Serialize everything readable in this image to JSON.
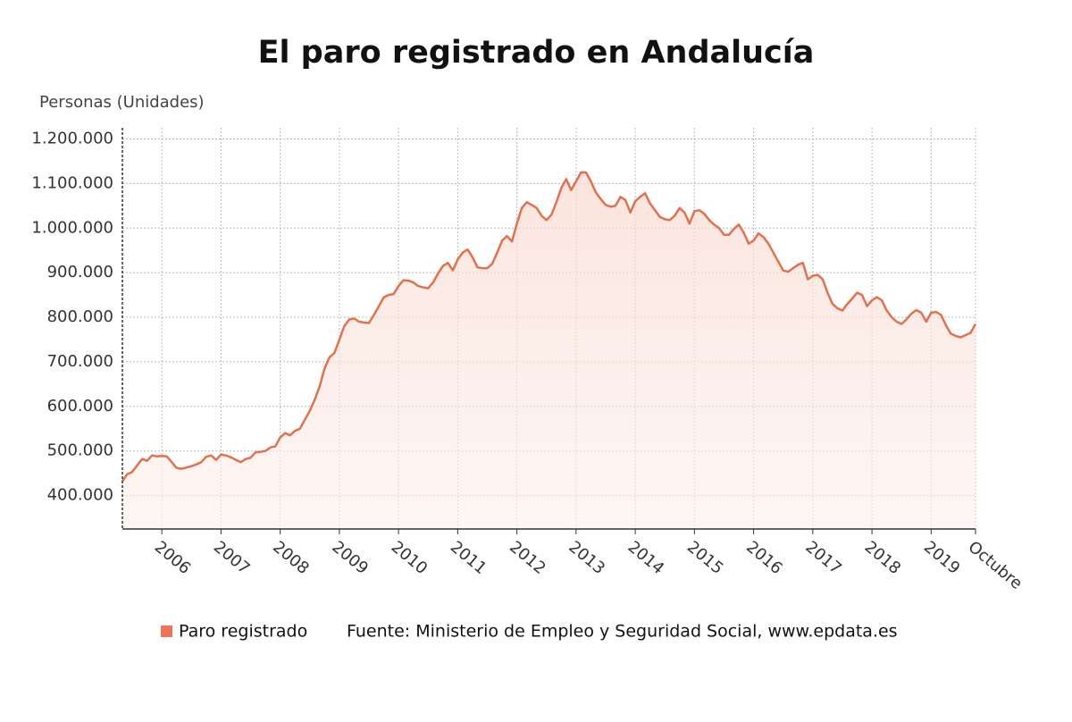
{
  "chart_data": {
    "type": "line",
    "title": "El paro registrado en Andalucía",
    "y_axis_label": "Personas (Unidades)",
    "source": "Fuente: Ministerio de Empleo y Seguridad Social, www.epdata.es",
    "categories": [
      null,
      null,
      null,
      null,
      null,
      null,
      null,
      null,
      "2006",
      null,
      null,
      null,
      null,
      null,
      null,
      null,
      null,
      null,
      null,
      null,
      "2007",
      null,
      null,
      null,
      null,
      null,
      null,
      null,
      null,
      null,
      null,
      null,
      "2008",
      null,
      null,
      null,
      null,
      null,
      null,
      null,
      null,
      null,
      null,
      null,
      "2009",
      null,
      null,
      null,
      null,
      null,
      null,
      null,
      null,
      null,
      null,
      null,
      "2010",
      null,
      null,
      null,
      null,
      null,
      null,
      null,
      null,
      null,
      null,
      null,
      "2011",
      null,
      null,
      null,
      null,
      null,
      null,
      null,
      null,
      null,
      null,
      null,
      "2012",
      null,
      null,
      null,
      null,
      null,
      null,
      null,
      null,
      null,
      null,
      null,
      "2013",
      null,
      null,
      null,
      null,
      null,
      null,
      null,
      null,
      null,
      null,
      null,
      "2014",
      null,
      null,
      null,
      null,
      null,
      null,
      null,
      null,
      null,
      null,
      null,
      "2015",
      null,
      null,
      null,
      null,
      null,
      null,
      null,
      null,
      null,
      null,
      null,
      "2016",
      null,
      null,
      null,
      null,
      null,
      null,
      null,
      null,
      null,
      null,
      null,
      "2017",
      null,
      null,
      null,
      null,
      null,
      null,
      null,
      null,
      null,
      null,
      null,
      "2018",
      null,
      null,
      null,
      null,
      null,
      null,
      null,
      null,
      null,
      null,
      null,
      "2019",
      null,
      null,
      null,
      null,
      null,
      null,
      null,
      null,
      "Octubre"
    ],
    "series": [
      {
        "name": "Paro registrado",
        "color": "#e2714f",
        "values": [
          432000,
          448000,
          453000,
          468000,
          482000,
          478000,
          490000,
          488000,
          489000,
          488000,
          475000,
          462000,
          460000,
          463000,
          466000,
          470000,
          475000,
          487000,
          490000,
          480000,
          492000,
          490000,
          486000,
          480000,
          475000,
          482000,
          485000,
          497000,
          498000,
          500000,
          508000,
          510000,
          530000,
          540000,
          535000,
          545000,
          550000,
          570000,
          590000,
          615000,
          645000,
          685000,
          710000,
          720000,
          750000,
          780000,
          795000,
          797000,
          790000,
          788000,
          787000,
          805000,
          825000,
          845000,
          850000,
          852000,
          870000,
          883000,
          882000,
          878000,
          870000,
          867000,
          865000,
          878000,
          898000,
          915000,
          922000,
          905000,
          930000,
          945000,
          952000,
          935000,
          912000,
          910000,
          910000,
          920000,
          945000,
          972000,
          982000,
          970000,
          1010000,
          1045000,
          1058000,
          1052000,
          1045000,
          1028000,
          1018000,
          1030000,
          1058000,
          1090000,
          1110000,
          1085000,
          1105000,
          1125000,
          1125000,
          1105000,
          1080000,
          1065000,
          1052000,
          1048000,
          1050000,
          1070000,
          1063000,
          1035000,
          1060000,
          1070000,
          1078000,
          1055000,
          1040000,
          1025000,
          1020000,
          1018000,
          1028000,
          1045000,
          1035000,
          1010000,
          1038000,
          1040000,
          1032000,
          1018000,
          1008000,
          1000000,
          985000,
          985000,
          998000,
          1008000,
          990000,
          965000,
          972000,
          988000,
          980000,
          965000,
          945000,
          925000,
          905000,
          902000,
          910000,
          918000,
          922000,
          885000,
          893000,
          895000,
          885000,
          855000,
          830000,
          820000,
          815000,
          830000,
          842000,
          855000,
          850000,
          825000,
          838000,
          845000,
          838000,
          815000,
          800000,
          790000,
          785000,
          795000,
          808000,
          816000,
          810000,
          790000,
          810000,
          812000,
          805000,
          782000,
          763000,
          758000,
          755000,
          760000,
          765000,
          785000
        ]
      }
    ],
    "ylim": [
      325000,
      1225000
    ],
    "yticks": [
      {
        "value": 400000,
        "label": "400.000"
      },
      {
        "value": 500000,
        "label": "500.000"
      },
      {
        "value": 600000,
        "label": "600.000"
      },
      {
        "value": 700000,
        "label": "700.000"
      },
      {
        "value": 800000,
        "label": "800.000"
      },
      {
        "value": 900000,
        "label": "900.000"
      },
      {
        "value": 1000000,
        "label": "1.000.000"
      },
      {
        "value": 1100000,
        "label": "1.100.000"
      },
      {
        "value": 1200000,
        "label": "1.200.000"
      }
    ],
    "grid": true
  }
}
